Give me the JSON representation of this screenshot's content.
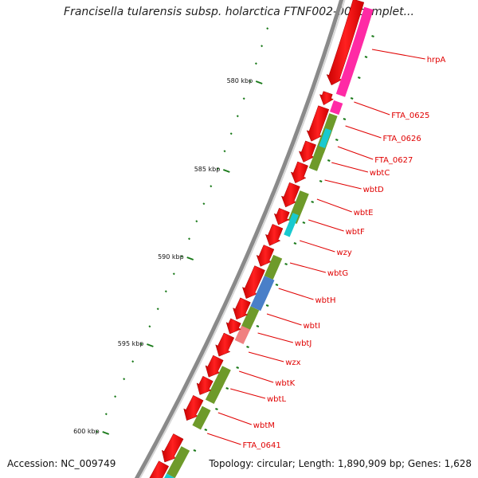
{
  "title": "Francisella tularensis subsp. holarctica FTNF002-00, complet...",
  "footer": {
    "accession": "Accession: NC_009749",
    "topology": "Topology: circular; Length: 1,890,909 bp; Genes: 1,628"
  },
  "colors": {
    "cds": "#ff1a1a",
    "pink": "#ff2aa5",
    "olive": "#6e9a2a",
    "cyan": "#19c9cf",
    "blue": "#4a7fc8",
    "salmon": "#f08080",
    "label": "#e00000",
    "tick": "#1a7a1a",
    "backbone": "#8a8a8a"
  },
  "scale_ticks": [
    {
      "label": "580 kbp"
    },
    {
      "label": "585 kbp"
    },
    {
      "label": "590 kbp"
    },
    {
      "label": "595 kbp"
    },
    {
      "label": "600 kbp"
    }
  ],
  "gene_labels": [
    {
      "label": "hrpA"
    },
    {
      "label": "FTA_0625"
    },
    {
      "label": "FTA_0626"
    },
    {
      "label": "FTA_0627"
    },
    {
      "label": "wbtC"
    },
    {
      "label": "wbtD"
    },
    {
      "label": "wbtE"
    },
    {
      "label": "wbtF"
    },
    {
      "label": "wzy"
    },
    {
      "label": "wbtG"
    },
    {
      "label": "wbtH"
    },
    {
      "label": "wbtI"
    },
    {
      "label": "wbtJ"
    },
    {
      "label": "wzx"
    },
    {
      "label": "wbtK"
    },
    {
      "label": "wbtL"
    },
    {
      "label": "wbtM"
    },
    {
      "label": "FTA_0641"
    }
  ]
}
